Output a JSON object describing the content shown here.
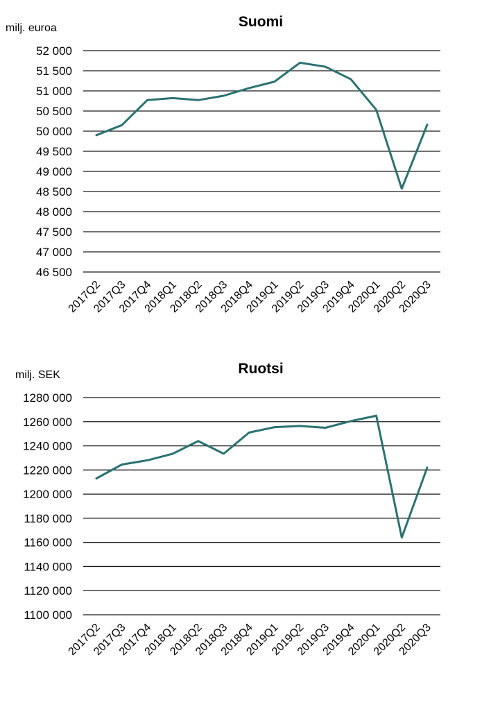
{
  "chart_data": [
    {
      "type": "line",
      "title": "Suomi",
      "ylabel": "milj. euroa",
      "xlabel": "",
      "categories": [
        "2017Q2",
        "2017Q3",
        "2017Q4",
        "2018Q1",
        "2018Q2",
        "2018Q3",
        "2018Q4",
        "2019Q1",
        "2019Q2",
        "2019Q3",
        "2019Q4",
        "2020Q1",
        "2020Q2",
        "2020Q3"
      ],
      "yticks": [
        "52 000",
        "51 500",
        "51 000",
        "50 500",
        "50 000",
        "49 500",
        "49 000",
        "48 500",
        "48 000",
        "47 500",
        "47 000",
        "46 500"
      ],
      "ylim": [
        46500,
        52000
      ],
      "grid": true,
      "line_color": "#2a7270",
      "series": [
        {
          "values": [
            49900,
            50150,
            50770,
            50820,
            50770,
            50880,
            51070,
            51230,
            51700,
            51600,
            51290,
            50530,
            48570,
            50160
          ]
        }
      ]
    },
    {
      "type": "line",
      "title": "Ruotsi",
      "ylabel": "milj. SEK",
      "xlabel": "",
      "categories": [
        "2017Q2",
        "2017Q3",
        "2017Q4",
        "2018Q1",
        "2018Q2",
        "2018Q3",
        "2018Q4",
        "2019Q1",
        "2019Q2",
        "2019Q3",
        "2019Q4",
        "2020Q1",
        "2020Q2",
        "2020Q3"
      ],
      "yticks": [
        "1280 000",
        "1260 000",
        "1240 000",
        "1220 000",
        "1200 000",
        "1180 000",
        "1160 000",
        "1140 000",
        "1120 000",
        "1100 000"
      ],
      "ylim": [
        1100000,
        1280000
      ],
      "grid": true,
      "line_color": "#2a7270",
      "series": [
        {
          "values": [
            1213000,
            1224500,
            1228000,
            1233500,
            1244000,
            1233500,
            1251000,
            1255500,
            1256500,
            1255000,
            1260500,
            1265000,
            1164000,
            1222000
          ]
        }
      ]
    }
  ]
}
